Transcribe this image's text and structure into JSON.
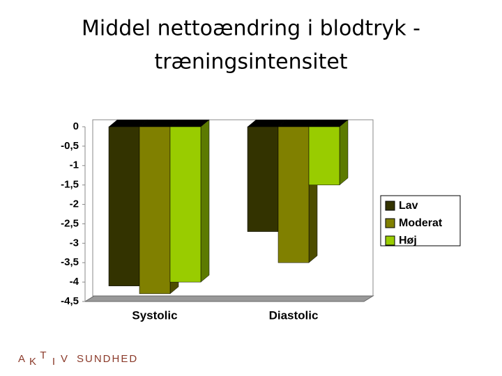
{
  "chart_data": {
    "type": "bar3d",
    "title": [
      "Middel nettoændring i blodtryk -",
      "træningsintensitet"
    ],
    "categories": [
      "Systolic",
      "Diastolic"
    ],
    "series": [
      {
        "name": "Lav",
        "color": "#333300",
        "values": [
          -4.1,
          -2.7
        ]
      },
      {
        "name": "Moderat",
        "color": "#808000",
        "values": [
          -4.3,
          -3.5
        ]
      },
      {
        "name": "Høj",
        "color": "#99cc00",
        "values": [
          -4.0,
          -1.5
        ]
      }
    ],
    "ylim": [
      -4.5,
      0
    ],
    "yticks": [
      0,
      {
        "value": -0.5,
        "label": "-0,5"
      },
      -1,
      {
        "value": -1.5,
        "label": "-1,5"
      },
      -2,
      {
        "value": -2.5,
        "label": "-2,5"
      },
      -3,
      {
        "value": -3.5,
        "label": "-3,5"
      },
      -4,
      {
        "value": -4.5,
        "label": "-4,5"
      }
    ],
    "legend": "right"
  },
  "logo": {
    "letters": [
      "A",
      "K",
      "T",
      "I",
      "V"
    ],
    "word": "SUNDHED"
  }
}
